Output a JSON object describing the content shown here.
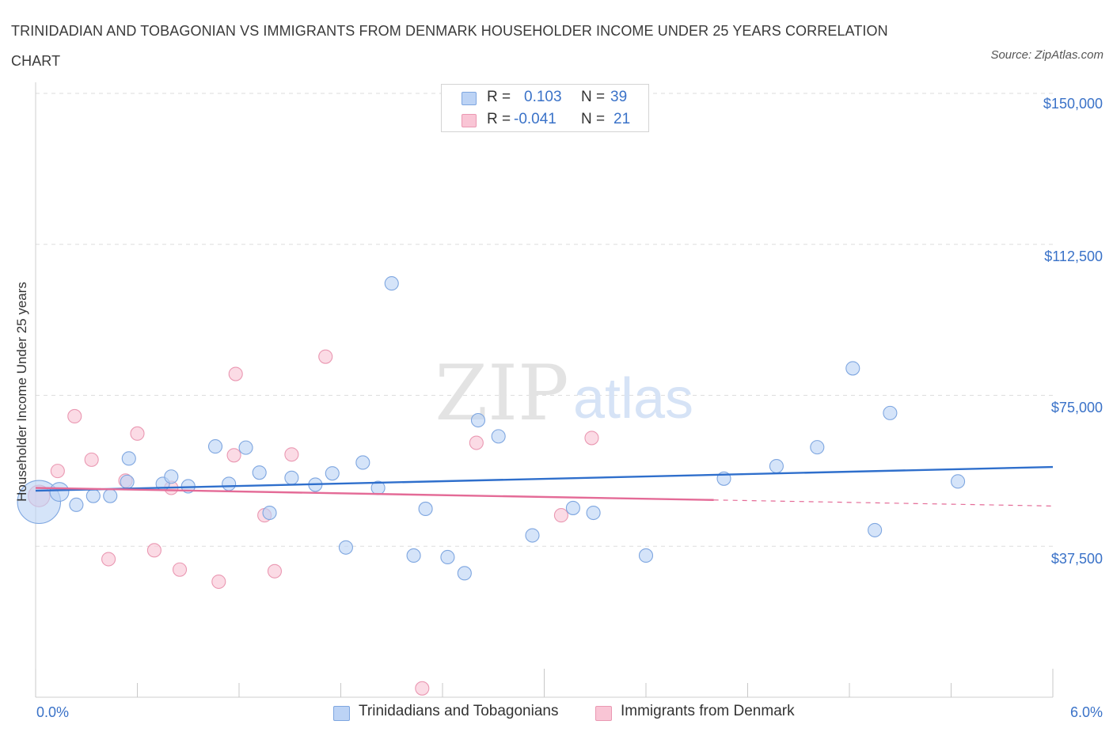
{
  "title": "TRINIDADIAN AND TOBAGONIAN VS IMMIGRANTS FROM DENMARK HOUSEHOLDER INCOME UNDER 25 YEARS CORRELATION CHART",
  "source": "Source: ZipAtlas.com",
  "watermark": {
    "zip": "ZIP",
    "atlas": "atlas"
  },
  "legend": {
    "blue": {
      "r_label": "R =",
      "r_value": "0.103",
      "n_label": "N =",
      "n_value": "39"
    },
    "pink": {
      "r_label": "R =",
      "r_value": "-0.041",
      "n_label": "N =",
      "n_value": "21"
    }
  },
  "colors": {
    "blue_fill": "#bcd3f5",
    "blue_stroke": "#7ea6e0",
    "blue_line": "#2f6fcc",
    "pink_fill": "#f9c5d5",
    "pink_stroke": "#ea98b2",
    "pink_line": "#e46b97",
    "tick_text": "#3a72c8",
    "grid": "#dddddd"
  },
  "chart_data": {
    "type": "scatter",
    "title": "TRINIDADIAN AND TOBAGONIAN VS IMMIGRANTS FROM DENMARK HOUSEHOLDER INCOME UNDER 25 YEARS CORRELATION CHART",
    "xlabel": "",
    "ylabel": "Householder Income Under 25 years",
    "xlim": [
      0,
      6
    ],
    "ylim": [
      0,
      150000
    ],
    "x_tick_labels": [
      "0.0%",
      "6.0%"
    ],
    "y_ticks": [
      37500,
      75000,
      112500,
      150000
    ],
    "y_tick_labels": [
      "$37,500",
      "$75,000",
      "$112,500",
      "$150,000"
    ],
    "grid": true,
    "legend_position": "top-center",
    "series": [
      {
        "name": "Trinidadians and Tobagonians",
        "color": "#bcd3f5",
        "points": [
          [
            0.02,
            48500,
            3.2
          ],
          [
            0.14,
            51000,
            1.4
          ],
          [
            0.24,
            47800,
            1
          ],
          [
            0.34,
            50000,
            1
          ],
          [
            0.44,
            50000,
            1
          ],
          [
            0.55,
            59300,
            1
          ],
          [
            0.54,
            53500,
            1
          ],
          [
            0.75,
            53000,
            1
          ],
          [
            0.8,
            54800,
            1
          ],
          [
            0.9,
            52400,
            1
          ],
          [
            1.06,
            62300,
            1
          ],
          [
            1.14,
            53000,
            1
          ],
          [
            1.24,
            62000,
            1
          ],
          [
            1.32,
            55800,
            1
          ],
          [
            1.38,
            45800,
            1
          ],
          [
            1.51,
            54500,
            1
          ],
          [
            1.65,
            52800,
            1
          ],
          [
            1.75,
            55600,
            1
          ],
          [
            1.83,
            37200,
            1
          ],
          [
            1.93,
            58300,
            1
          ],
          [
            2.02,
            52000,
            1
          ],
          [
            2.1,
            102800,
            1
          ],
          [
            2.23,
            35200,
            1
          ],
          [
            2.3,
            46800,
            1
          ],
          [
            2.43,
            34800,
            1
          ],
          [
            2.53,
            30800,
            1
          ],
          [
            2.61,
            68800,
            1
          ],
          [
            2.73,
            64800,
            1
          ],
          [
            2.93,
            40200,
            1
          ],
          [
            3.17,
            47000,
            1
          ],
          [
            3.29,
            45800,
            1
          ],
          [
            3.6,
            35200,
            1
          ],
          [
            4.06,
            54300,
            1
          ],
          [
            4.37,
            57400,
            1
          ],
          [
            4.61,
            62100,
            1
          ],
          [
            4.82,
            81700,
            1
          ],
          [
            4.95,
            41500,
            1
          ],
          [
            5.04,
            70600,
            1
          ],
          [
            5.44,
            53600,
            1
          ]
        ]
      },
      {
        "name": "Immigrants from Denmark",
        "color": "#f9c5d5",
        "points": [
          [
            0.02,
            50000,
            1.6
          ],
          [
            0.13,
            56200,
            1
          ],
          [
            0.23,
            69800,
            1
          ],
          [
            0.33,
            59000,
            1
          ],
          [
            0.43,
            34300,
            1
          ],
          [
            0.53,
            53800,
            1
          ],
          [
            0.6,
            65500,
            1
          ],
          [
            0.7,
            36500,
            1
          ],
          [
            0.8,
            52000,
            1
          ],
          [
            0.85,
            31700,
            1
          ],
          [
            1.08,
            28700,
            1
          ],
          [
            1.18,
            80300,
            1
          ],
          [
            1.17,
            60100,
            1
          ],
          [
            1.35,
            45200,
            1
          ],
          [
            1.41,
            31300,
            1
          ],
          [
            1.51,
            60300,
            1
          ],
          [
            1.71,
            84600,
            1
          ],
          [
            2.28,
            2200,
            1
          ],
          [
            2.6,
            63200,
            1
          ],
          [
            3.1,
            45200,
            1
          ],
          [
            3.28,
            64400,
            1
          ]
        ]
      }
    ],
    "trend_lines": [
      {
        "series": "Trinidadians and Tobagonians",
        "x": [
          0,
          6
        ],
        "y": [
          51300,
          57200
        ],
        "dashed_from": null
      },
      {
        "series": "Immigrants from Denmark",
        "x": [
          0,
          6
        ],
        "y": [
          52000,
          47500
        ],
        "dashed_from": 4.0
      }
    ]
  }
}
